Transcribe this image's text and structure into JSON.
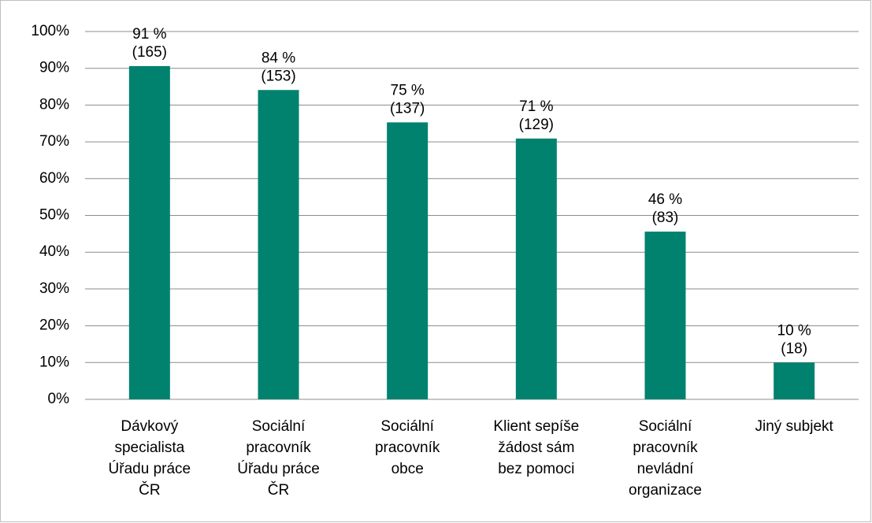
{
  "chart_data": {
    "type": "bar",
    "categories": [
      [
        "Dávkový",
        "specialista",
        "Úřadu práce",
        "ČR"
      ],
      [
        "Sociální",
        "pracovník",
        "Úřadu práce",
        "ČR"
      ],
      [
        "Sociální",
        "pracovník",
        "obce"
      ],
      [
        "Klient sepíše",
        "žádost sám",
        "bez pomoci"
      ],
      [
        "Sociální",
        "pracovník",
        "nevládní",
        "organizace"
      ],
      [
        "Jiný subjekt"
      ]
    ],
    "values": [
      90.6,
      84.1,
      75.3,
      70.9,
      45.6,
      10
    ],
    "value_labels": [
      "91 %",
      "84 %",
      "75 %",
      "71 %",
      "46 %",
      "10  %"
    ],
    "counts": [
      "(165)",
      "(153)",
      "(137)",
      "(129)",
      "(83)",
      "(18)"
    ],
    "color": "#00826f",
    "ylim": [
      0,
      100
    ],
    "yticks": [
      {
        "value": 0,
        "label": "0%"
      },
      {
        "value": 10,
        "label": "10%"
      },
      {
        "value": 20,
        "label": "20%"
      },
      {
        "value": 30,
        "label": "30%"
      },
      {
        "value": 40,
        "label": "40%"
      },
      {
        "value": 50,
        "label": "50%"
      },
      {
        "value": 60,
        "label": "60%"
      },
      {
        "value": 70,
        "label": "70%"
      },
      {
        "value": 80,
        "label": "80%"
      },
      {
        "value": 90,
        "label": "90%"
      },
      {
        "value": 100,
        "label": "100%"
      }
    ],
    "grid": true
  }
}
